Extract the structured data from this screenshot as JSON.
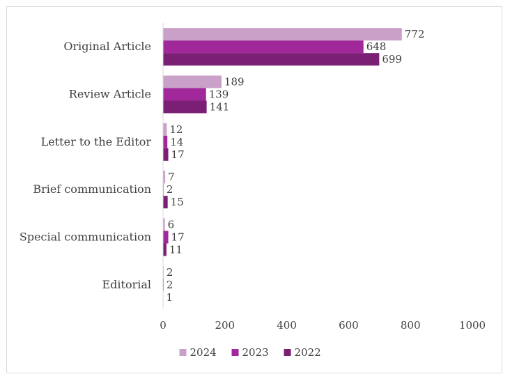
{
  "chart_data": {
    "type": "bar",
    "orientation": "horizontal",
    "title": "",
    "xlabel": "",
    "ylabel": "",
    "categories": [
      "Original Article",
      "Review Article",
      "Letter to the Editor",
      "Brief communication",
      "Special communication",
      "Editorial"
    ],
    "series": [
      {
        "name": "2024",
        "color": "#c9a0c8",
        "values": [
          772,
          189,
          12,
          7,
          6,
          2
        ]
      },
      {
        "name": "2023",
        "color": "#a0289a",
        "values": [
          648,
          139,
          14,
          2,
          17,
          2
        ]
      },
      {
        "name": "2022",
        "color": "#7a1f73",
        "values": [
          699,
          141,
          17,
          15,
          11,
          1
        ]
      }
    ],
    "xlim": [
      0,
      1000
    ],
    "xticks": [
      0,
      200,
      400,
      600,
      800,
      1000
    ],
    "grid": false,
    "legend_position": "bottom"
  }
}
